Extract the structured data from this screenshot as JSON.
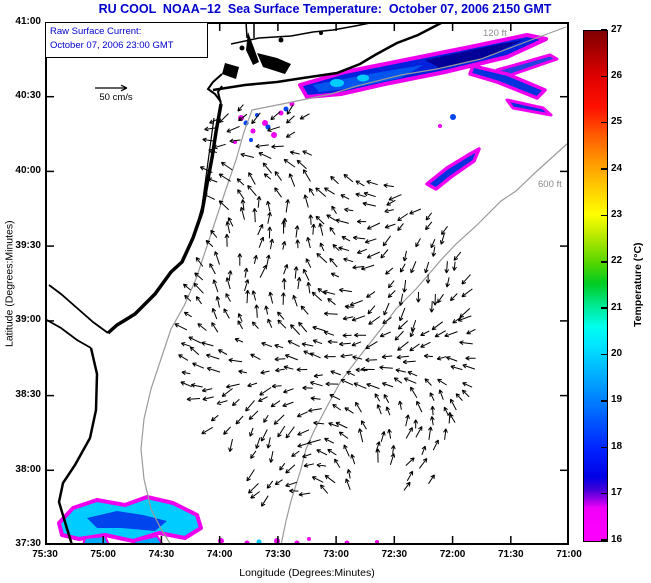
{
  "title": "RU COOL  NOAA−12  Sea Surface Temperature:  October 07, 2006 2150 GMT",
  "overlay": {
    "annotation_line1": "Raw Surface Current:",
    "annotation_line2": "October 07, 2006 23:00 GMT",
    "scale_label": "50 cm/s",
    "depth_labels": {
      "d120": "120 ft",
      "d600": "600 ft"
    }
  },
  "colors": {
    "title_blue": "#0000CC",
    "annotation_blue": "#0000CC",
    "contour_gray": "#8C8C8C",
    "patch_magenta": "#EE00EE",
    "patch_blue": "#0022DD",
    "patch_navy": "#000099",
    "patch_mid": "#0055EE",
    "patch_cyan": "#00CCFF",
    "arrow_black": "#000000"
  },
  "colorbar_stops": [
    {
      "p": 0.0,
      "c": "#FF00FF"
    },
    {
      "p": 0.065,
      "c": "#F000F8"
    },
    {
      "p": 0.082,
      "c": "#9900E6"
    },
    {
      "p": 0.1,
      "c": "#4400D9"
    },
    {
      "p": 0.125,
      "c": "#0000E6"
    },
    {
      "p": 0.18,
      "c": "#0022FF"
    },
    {
      "p": 0.25,
      "c": "#0066FF"
    },
    {
      "p": 0.32,
      "c": "#00AAFF"
    },
    {
      "p": 0.385,
      "c": "#00E6FF"
    },
    {
      "p": 0.42,
      "c": "#00FFEE"
    },
    {
      "p": 0.465,
      "c": "#00E689"
    },
    {
      "p": 0.505,
      "c": "#00CC22"
    },
    {
      "p": 0.545,
      "c": "#55D500"
    },
    {
      "p": 0.59,
      "c": "#AAE600"
    },
    {
      "p": 0.64,
      "c": "#FFFF00"
    },
    {
      "p": 0.7,
      "c": "#FFC400"
    },
    {
      "p": 0.75,
      "c": "#FF9100"
    },
    {
      "p": 0.8,
      "c": "#FF5500"
    },
    {
      "p": 0.85,
      "c": "#FF1100"
    },
    {
      "p": 0.91,
      "c": "#E00000"
    },
    {
      "p": 0.96,
      "c": "#AA0000"
    },
    {
      "p": 1.0,
      "c": "#7F0000"
    }
  ],
  "chart_data": {
    "type": "heatmap",
    "subtype": "sea-surface-temperature-map-with-current-vectors",
    "title": "RU COOL  NOAA−12  Sea Surface Temperature:  October 07, 2006 2150 GMT",
    "xlabel": "Longitude (Degrees:Minutes)",
    "ylabel": "Latitude (Degrees:Minutes)",
    "x_tick_labels": [
      "75:30",
      "75:00",
      "74:30",
      "74:00",
      "73:30",
      "73:00",
      "72:30",
      "72:00",
      "71:30",
      "71:00"
    ],
    "y_tick_labels": [
      "41:00",
      "40:30",
      "40:00",
      "39:30",
      "39:00",
      "38:30",
      "38:00",
      "37:30"
    ],
    "x_range": [
      "75:30 W",
      "71:00 W"
    ],
    "y_range": [
      "37:30 N",
      "41:00 N"
    ],
    "colorbar": {
      "label": "Temperature (°C)",
      "min": 16,
      "max": 27,
      "ticks": [
        27,
        26,
        25,
        24,
        23,
        22,
        21,
        20,
        19,
        18,
        17,
        16
      ]
    },
    "vector_overlay": {
      "name": "Raw Surface Current:",
      "timestamp": "October 07, 2006 23:00 GMT",
      "scale": "50 cm/s"
    },
    "bathymetry_contours": [
      "120 ft",
      "600 ft"
    ],
    "notes": "Cold SST patches (16-20 C, blue/cyan with magenta fringes) over the Long Island area, outer-shelf streaks and the southern edge of the map; black surface-current vectors cover the New Jersey mid-shelf; gray bathymetry contours at 120 ft and 600 ft."
  }
}
